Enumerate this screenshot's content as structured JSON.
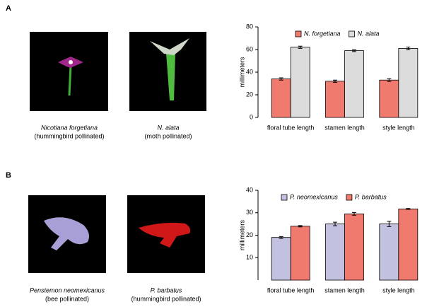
{
  "panels": [
    {
      "label": "A",
      "photos": [
        {
          "caption": "Nicotiana forgetiana",
          "note": "(hummingbird pollinated)"
        },
        {
          "caption": "N. alata",
          "note": "(moth pollinated)"
        }
      ]
    },
    {
      "label": "B",
      "photos": [
        {
          "caption": "Penstemon neomexicanus",
          "note": "(bee pollinated)"
        },
        {
          "caption": "P. barbatus",
          "note": "(hummingbird pollinated)"
        }
      ]
    }
  ],
  "chart_data": [
    {
      "type": "bar",
      "ylabel": "millimeters",
      "categories": [
        "floral tube length",
        "stamen length",
        "style length"
      ],
      "series": [
        {
          "name": "N. forgetiana",
          "color": "#f07a6e",
          "values": [
            34,
            32,
            33
          ],
          "errors": [
            1,
            1,
            1.2
          ]
        },
        {
          "name": "N. alata",
          "color": "#dcdcdc",
          "values": [
            62,
            59,
            61
          ],
          "errors": [
            1,
            0.8,
            1.2
          ]
        }
      ],
      "ylim": [
        0,
        80
      ],
      "yticks": [
        0,
        20,
        40,
        60,
        80
      ]
    },
    {
      "type": "bar",
      "ylabel": "millimeters",
      "categories": [
        "floral tube length",
        "stamen length",
        "style length"
      ],
      "series": [
        {
          "name": "P. neomexicanus",
          "color": "#c3c1e0",
          "values": [
            19,
            25,
            25
          ],
          "errors": [
            0.4,
            0.8,
            1.2
          ]
        },
        {
          "name": "P. barbatus",
          "color": "#f07a6e",
          "values": [
            24,
            29.5,
            31.7
          ],
          "errors": [
            0.3,
            0.6,
            0.2
          ]
        }
      ],
      "ylim": [
        0,
        40
      ],
      "yticks": [
        10,
        20,
        30,
        40
      ]
    }
  ]
}
